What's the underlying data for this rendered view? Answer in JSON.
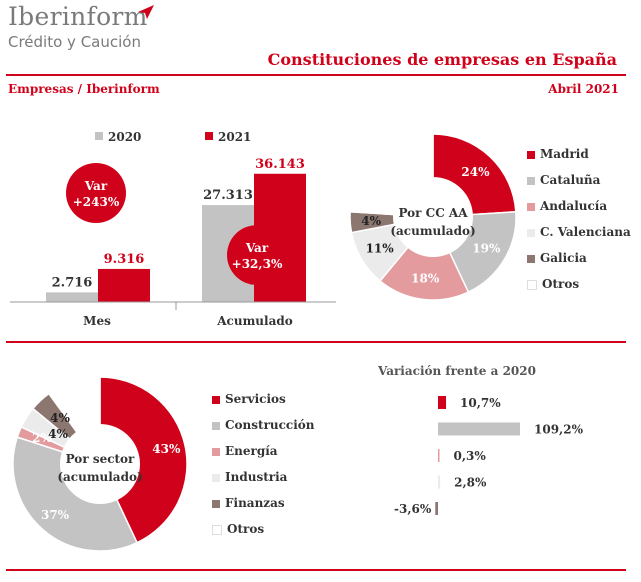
{
  "header": {
    "logo_main": "Iberinform",
    "logo_sub": "Crédito y Caución",
    "title": "Constituciones de empresas en España",
    "source": "Empresas / Iberinform",
    "date": "Abril 2021"
  },
  "colors": {
    "red": "#d0021b",
    "grey": "#c3c3c3",
    "pink": "#e39b9e",
    "lightgrey": "#ebebeb",
    "brown": "#8b7670",
    "white": "#ffffff"
  },
  "chart_data": [
    {
      "type": "bar",
      "categories": [
        "Mes",
        "Acumulado"
      ],
      "series": [
        {
          "name": "2020",
          "values": [
            2716,
            27313
          ],
          "labels": [
            "2.716",
            "27.313"
          ],
          "color": "#c3c3c3"
        },
        {
          "name": "2021",
          "values": [
            9316,
            36143
          ],
          "labels": [
            "9.316",
            "36.143"
          ],
          "color": "#d0021b"
        }
      ],
      "annotations": [
        {
          "category": "Mes",
          "line1": "Var",
          "line2": "+243%"
        },
        {
          "category": "Acumulado",
          "line1": "Var",
          "line2": "+32,3%"
        }
      ],
      "ylim": [
        0,
        40000
      ]
    },
    {
      "type": "pie",
      "center_line1": "Por CC AA",
      "center_line2": "(acumulado)",
      "slices": [
        {
          "name": "Madrid",
          "value": 24,
          "label": "24%",
          "color": "#d0021b"
        },
        {
          "name": "Cataluña",
          "value": 19,
          "label": "19%",
          "color": "#c3c3c3"
        },
        {
          "name": "Andalucía",
          "value": 18,
          "label": "18%",
          "color": "#e39b9e"
        },
        {
          "name": "C. Valenciana",
          "value": 11,
          "label": "11%",
          "color": "#ebebeb"
        },
        {
          "name": "Galicia",
          "value": 4,
          "label": "4%",
          "color": "#8b7670"
        },
        {
          "name": "Otros",
          "value": 24,
          "label": "",
          "color": "#ffffff"
        }
      ]
    },
    {
      "type": "pie",
      "center_line1": "Por sector",
      "center_line2": "(acumulado)",
      "slices": [
        {
          "name": "Servicios",
          "value": 43,
          "label": "43%",
          "color": "#d0021b"
        },
        {
          "name": "Construcción",
          "value": 37,
          "label": "37%",
          "color": "#c3c3c3"
        },
        {
          "name": "Energía",
          "value": 2,
          "label": "2%",
          "color": "#e39b9e"
        },
        {
          "name": "Industria",
          "value": 4,
          "label": "4%",
          "color": "#ebebeb"
        },
        {
          "name": "Finanzas",
          "value": 4,
          "label": "4%",
          "color": "#8b7670"
        },
        {
          "name": "Otros",
          "value": 10,
          "label": "",
          "color": "#ffffff"
        }
      ]
    },
    {
      "type": "bar",
      "orientation": "horizontal",
      "title": "Variación frente a 2020",
      "categories": [
        "Servicios",
        "Construcción",
        "Energía",
        "Industria",
        "Finanzas"
      ],
      "values": [
        10.7,
        109.2,
        0.3,
        2.8,
        -3.6
      ],
      "labels": [
        "10,7%",
        "109,2%",
        "0,3%",
        "2,8%",
        "-3,6%"
      ],
      "colors": [
        "#d0021b",
        "#c3c3c3",
        "#e39b9e",
        "#ebebeb",
        "#8b7670"
      ]
    }
  ]
}
